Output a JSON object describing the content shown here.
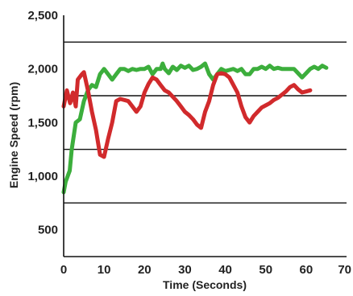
{
  "chart_data": {
    "type": "line",
    "title": "",
    "xlabel": "Time (Seconds)",
    "ylabel": "Engine Speed (rpm)",
    "xlim": [
      0,
      70
    ],
    "ylim": [
      250,
      2500
    ],
    "x_ticks": [
      0,
      10,
      20,
      30,
      40,
      50,
      60,
      70
    ],
    "x_tick_labels": [
      "0",
      "10",
      "20",
      "30",
      "40",
      "50",
      "60",
      "70"
    ],
    "y_ticks": [
      500,
      1000,
      1500,
      2000,
      2500
    ],
    "y_tick_labels": [
      "500",
      "1,000",
      "1,500",
      "2,000",
      "2,500"
    ],
    "gridlines_y": [
      750,
      1250,
      1750,
      2250
    ],
    "grid": true,
    "legend": null,
    "series": [
      {
        "color": "#3cae3c",
        "points": [
          [
            0,
            850
          ],
          [
            0.5,
            950
          ],
          [
            1.5,
            1050
          ],
          [
            2,
            1250
          ],
          [
            3,
            1500
          ],
          [
            4,
            1530
          ],
          [
            5,
            1700
          ],
          [
            6,
            1800
          ],
          [
            7,
            1850
          ],
          [
            8,
            1830
          ],
          [
            9,
            1950
          ],
          [
            10,
            2000
          ],
          [
            11,
            1950
          ],
          [
            12,
            1900
          ],
          [
            13,
            1950
          ],
          [
            14,
            2000
          ],
          [
            15,
            2000
          ],
          [
            16,
            1980
          ],
          [
            17,
            2000
          ],
          [
            18,
            1990
          ],
          [
            19,
            2000
          ],
          [
            20,
            2000
          ],
          [
            21,
            2020
          ],
          [
            22,
            1950
          ],
          [
            23,
            2000
          ],
          [
            24,
            2000
          ],
          [
            24.5,
            2050
          ],
          [
            25,
            2000
          ],
          [
            26,
            1960
          ],
          [
            27,
            2020
          ],
          [
            28,
            1990
          ],
          [
            29,
            2030
          ],
          [
            30,
            2010
          ],
          [
            31,
            2030
          ],
          [
            32,
            1990
          ],
          [
            33,
            2000
          ],
          [
            34,
            2020
          ],
          [
            35,
            2050
          ],
          [
            36,
            1950
          ],
          [
            37,
            1900
          ],
          [
            38,
            1950
          ],
          [
            39,
            2000
          ],
          [
            40,
            1980
          ],
          [
            41,
            1990
          ],
          [
            42,
            2000
          ],
          [
            43,
            1980
          ],
          [
            44,
            2000
          ],
          [
            45,
            1950
          ],
          [
            46,
            1950
          ],
          [
            47,
            2000
          ],
          [
            48,
            2000
          ],
          [
            49,
            2020
          ],
          [
            50,
            2000
          ],
          [
            51,
            2030
          ],
          [
            52,
            2000
          ],
          [
            53,
            2010
          ],
          [
            54,
            2000
          ],
          [
            55,
            2000
          ],
          [
            56,
            2000
          ],
          [
            57,
            2000
          ],
          [
            58,
            1960
          ],
          [
            59,
            1920
          ],
          [
            60,
            1960
          ],
          [
            61,
            2000
          ],
          [
            62,
            2020
          ],
          [
            63,
            2000
          ],
          [
            64,
            2030
          ],
          [
            65,
            2010
          ]
        ]
      },
      {
        "color": "#d12a2c",
        "points": [
          [
            0,
            1650
          ],
          [
            0.8,
            1800
          ],
          [
            1.6,
            1680
          ],
          [
            2.3,
            1780
          ],
          [
            3,
            1650
          ],
          [
            3.5,
            1900
          ],
          [
            4.5,
            1950
          ],
          [
            5,
            1970
          ],
          [
            6,
            1800
          ],
          [
            7,
            1600
          ],
          [
            8,
            1430
          ],
          [
            9,
            1200
          ],
          [
            10,
            1180
          ],
          [
            11,
            1350
          ],
          [
            12,
            1500
          ],
          [
            13,
            1700
          ],
          [
            14,
            1720
          ],
          [
            15,
            1710
          ],
          [
            16,
            1700
          ],
          [
            17,
            1650
          ],
          [
            18,
            1600
          ],
          [
            19,
            1650
          ],
          [
            20,
            1780
          ],
          [
            21,
            1860
          ],
          [
            22,
            1920
          ],
          [
            23,
            1900
          ],
          [
            24,
            1850
          ],
          [
            25,
            1800
          ],
          [
            26,
            1780
          ],
          [
            27,
            1740
          ],
          [
            28,
            1700
          ],
          [
            29,
            1650
          ],
          [
            30,
            1600
          ],
          [
            31,
            1570
          ],
          [
            32,
            1530
          ],
          [
            33,
            1480
          ],
          [
            34,
            1450
          ],
          [
            35,
            1600
          ],
          [
            36,
            1700
          ],
          [
            37,
            1850
          ],
          [
            38,
            1950
          ],
          [
            39,
            1960
          ],
          [
            40,
            1950
          ],
          [
            41,
            1920
          ],
          [
            42,
            1850
          ],
          [
            43,
            1780
          ],
          [
            44,
            1650
          ],
          [
            45,
            1550
          ],
          [
            46,
            1500
          ],
          [
            47,
            1560
          ],
          [
            48,
            1600
          ],
          [
            49,
            1640
          ],
          [
            50,
            1660
          ],
          [
            51,
            1680
          ],
          [
            52,
            1710
          ],
          [
            53,
            1730
          ],
          [
            54,
            1760
          ],
          [
            55,
            1790
          ],
          [
            56,
            1830
          ],
          [
            57,
            1850
          ],
          [
            58,
            1810
          ],
          [
            59,
            1780
          ],
          [
            60,
            1790
          ],
          [
            61,
            1800
          ]
        ]
      }
    ]
  }
}
